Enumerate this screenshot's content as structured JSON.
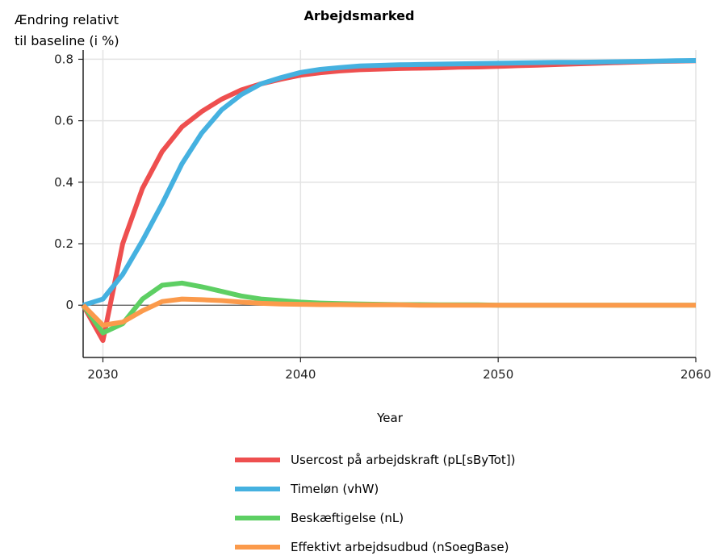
{
  "chart_data": {
    "type": "line",
    "title": "Arbejdsmarked",
    "ylabel_lines": [
      "Ændring relativt",
      "til baseline (i %)"
    ],
    "xlabel": "Year",
    "xlim": [
      2029,
      2060
    ],
    "ylim": [
      -0.17,
      0.83
    ],
    "xticks": [
      2030,
      2040,
      2050,
      2060
    ],
    "yticks": [
      0,
      0.2,
      0.4,
      0.6,
      0.8
    ],
    "ytick_labels": [
      "0",
      "0.2",
      "0.4",
      "0.6",
      "0.8"
    ],
    "grid": true,
    "legend_position": "bottom",
    "x": [
      2029,
      2030,
      2031,
      2032,
      2033,
      2034,
      2035,
      2036,
      2037,
      2038,
      2039,
      2040,
      2041,
      2042,
      2043,
      2044,
      2045,
      2046,
      2047,
      2048,
      2049,
      2050,
      2051,
      2052,
      2053,
      2054,
      2055,
      2056,
      2057,
      2058,
      2059,
      2060
    ],
    "series": [
      {
        "name": "Usercost på arbejdskraft (pL[sByTot])",
        "color": "#ee4f4f",
        "values": [
          0,
          -0.115,
          0.2,
          0.38,
          0.5,
          0.58,
          0.63,
          0.67,
          0.7,
          0.72,
          0.735,
          0.748,
          0.756,
          0.762,
          0.766,
          0.768,
          0.77,
          0.771,
          0.772,
          0.774,
          0.775,
          0.777,
          0.779,
          0.781,
          0.783,
          0.785,
          0.787,
          0.789,
          0.791,
          0.793,
          0.794,
          0.795
        ]
      },
      {
        "name": "Timeløn (vhW)",
        "color": "#45b1e0",
        "values": [
          0,
          0.02,
          0.1,
          0.21,
          0.33,
          0.46,
          0.56,
          0.635,
          0.685,
          0.72,
          0.74,
          0.757,
          0.767,
          0.773,
          0.778,
          0.78,
          0.782,
          0.783,
          0.784,
          0.785,
          0.786,
          0.787,
          0.788,
          0.789,
          0.79,
          0.79,
          0.791,
          0.792,
          0.793,
          0.794,
          0.795,
          0.796
        ]
      },
      {
        "name": "Beskæftigelse (nL)",
        "color": "#5dcf63",
        "values": [
          0,
          -0.09,
          -0.06,
          0.02,
          0.065,
          0.072,
          0.06,
          0.045,
          0.03,
          0.02,
          0.015,
          0.01,
          0.007,
          0.005,
          0.004,
          0.003,
          0.002,
          0.002,
          0.001,
          0.001,
          0.001,
          0.0,
          0.0,
          0.0,
          0.0,
          0.0,
          0.0,
          0.0,
          0.0,
          0.0,
          0.0,
          0.0
        ]
      },
      {
        "name": "Effektivt arbejdsudbud (nSoegBase)",
        "color": "#fb9a4b",
        "values": [
          0,
          -0.065,
          -0.055,
          -0.018,
          0.012,
          0.02,
          0.018,
          0.015,
          0.01,
          0.006,
          0.004,
          0.003,
          0.002,
          0.002,
          0.001,
          0.001,
          0.001,
          0.0,
          0.0,
          0.0,
          0.0,
          0.0,
          0.0,
          0.0,
          0.0,
          0.0,
          0.0,
          0.0,
          0.0,
          0.0,
          0.0,
          0.0
        ]
      }
    ]
  }
}
